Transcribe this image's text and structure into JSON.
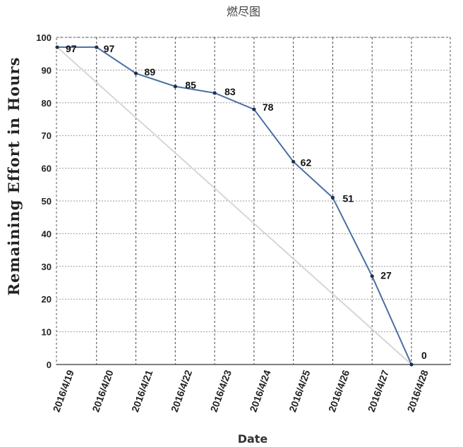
{
  "chart_data": {
    "type": "line",
    "title": "燃尽图",
    "xlabel": "Date",
    "ylabel": "Remaining Effort in Hours",
    "ylim": [
      0,
      100
    ],
    "yticks": [
      "0",
      "10",
      "20",
      "30",
      "40",
      "50",
      "60",
      "70",
      "80",
      "90",
      "100"
    ],
    "categories": [
      "2016/4/19",
      "2016/4/20",
      "2016/4/21",
      "2016/4/22",
      "2016/4/23",
      "2016/4/24",
      "2016/4/25",
      "2016/4/26",
      "2016/4/27",
      "2016/4/28"
    ],
    "series": [
      {
        "values": [
          97,
          97,
          89,
          85,
          83,
          78,
          62,
          51,
          27,
          0
        ],
        "data_labels": [
          "97",
          "97",
          "89",
          "85",
          "83",
          "78",
          "62",
          "51",
          "27",
          "0"
        ],
        "color": "#4a6fa5"
      },
      {
        "values": [
          97,
          null,
          null,
          null,
          null,
          null,
          null,
          null,
          null,
          0
        ],
        "color": "#d6d6d6"
      }
    ],
    "grid": true
  }
}
